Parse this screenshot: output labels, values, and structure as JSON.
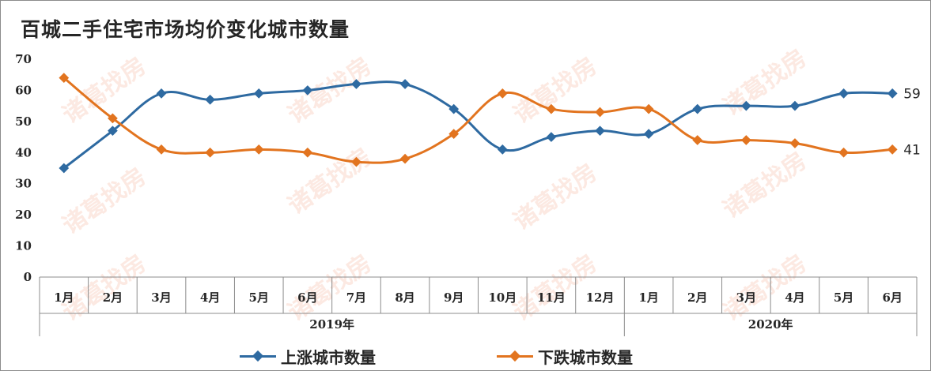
{
  "title": "百城二手住宅市场均价变化城市数量",
  "watermark": "诸葛找房",
  "legend": [
    {
      "name": "上涨城市数量",
      "color": "#2e6aa1"
    },
    {
      "name": "下跌城市数量",
      "color": "#e2741f"
    }
  ],
  "chart_data": {
    "type": "line",
    "categories": [
      "1月",
      "2月",
      "3月",
      "4月",
      "5月",
      "6月",
      "7月",
      "8月",
      "9月",
      "10月",
      "11月",
      "12月",
      "1月",
      "2月",
      "3月",
      "4月",
      "5月",
      "6月"
    ],
    "groups": [
      {
        "label": "2019年",
        "start": 0,
        "end": 11
      },
      {
        "label": "2020年",
        "start": 12,
        "end": 17
      }
    ],
    "series": [
      {
        "name": "上涨城市数量",
        "color": "#2e6aa1",
        "values": [
          35,
          47,
          59,
          57,
          59,
          60,
          62,
          62,
          54,
          41,
          45,
          47,
          46,
          54,
          55,
          55,
          59,
          59
        ],
        "end_label": "59"
      },
      {
        "name": "下跌城市数量",
        "color": "#e2741f",
        "values": [
          64,
          51,
          41,
          40,
          41,
          40,
          37,
          38,
          46,
          59,
          54,
          53,
          54,
          44,
          44,
          43,
          40,
          41
        ],
        "end_label": "41"
      }
    ],
    "ylim": [
      0,
      70
    ],
    "yticks": [
      0,
      10,
      20,
      30,
      40,
      50,
      60,
      70
    ],
    "grid": false,
    "smooth": true,
    "legend_position": "bottom"
  }
}
